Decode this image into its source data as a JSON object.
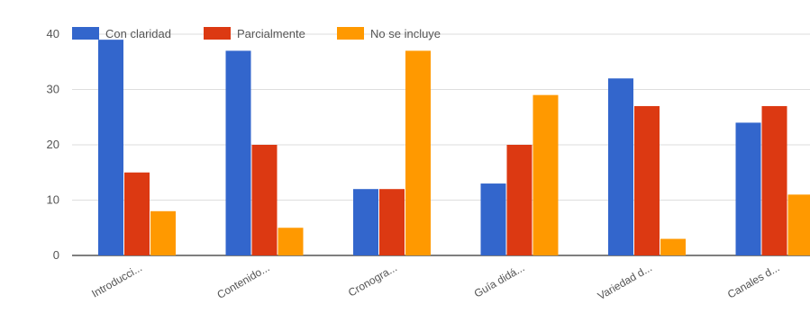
{
  "chart_data": {
    "type": "bar",
    "title": "",
    "xlabel": "",
    "ylabel": "",
    "categories": [
      "Introducci...",
      "Contenido...",
      "Cronogra...",
      "Guía didá...",
      "Variedad d...",
      "Canales d..."
    ],
    "series": [
      {
        "name": "Con claridad",
        "color": "#3366cc",
        "values": [
          39,
          37,
          12,
          13,
          32,
          24
        ]
      },
      {
        "name": "Parcialmente",
        "color": "#dc3912",
        "values": [
          15,
          20,
          12,
          20,
          27,
          27
        ]
      },
      {
        "name": "No se incluye",
        "color": "#ff9900",
        "values": [
          8,
          5,
          37,
          29,
          3,
          11
        ]
      }
    ],
    "ylim": [
      0,
      40
    ],
    "yticks": [
      0,
      10,
      20,
      30,
      40
    ],
    "grid": true,
    "legend_position": "top-left"
  }
}
